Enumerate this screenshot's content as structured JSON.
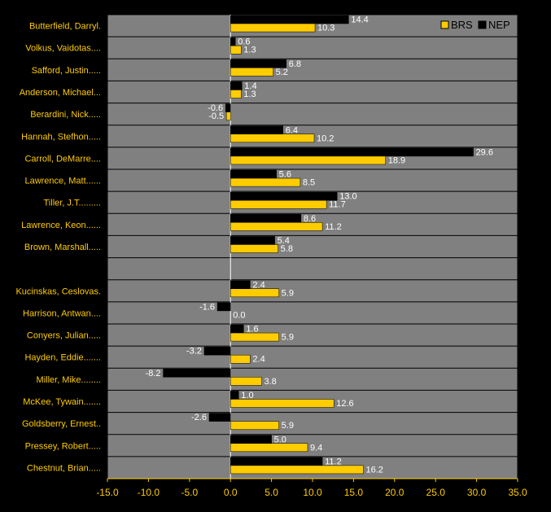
{
  "chart_data": {
    "type": "bar",
    "orientation": "horizontal",
    "categories": [
      "Butterfield, Darryl.",
      "Volkus, Vaidotas....",
      "Safford, Justin.....",
      "Anderson, Michael...",
      "Berardini, Nick.....",
      "Hannah, Stefhon.....",
      "Carroll, DeMarre....",
      "Lawrence, Matt......",
      "Tiller, J.T.........",
      "Lawrence, Keon......",
      "Brown, Marshall.....",
      "",
      "Kucinskas, Ceslovas.",
      "Harrison, Antwan....",
      "Conyers, Julian.....",
      "Hayden, Eddie.......",
      "Miller, Mike........",
      "McKee, Tywain.......",
      "Goldsberry, Ernest..",
      "Pressey, Robert.....",
      "Chestnut, Brian....."
    ],
    "series": [
      {
        "name": "NEP",
        "color": "#000000",
        "values": [
          14.4,
          0.6,
          6.8,
          1.4,
          -0.6,
          6.4,
          29.6,
          5.6,
          13.0,
          8.6,
          5.4,
          null,
          2.4,
          -1.6,
          1.6,
          -3.2,
          -8.2,
          1.0,
          -2.6,
          5.0,
          11.2
        ],
        "labels": [
          "14.4",
          "0.6",
          "6.8",
          "1.4",
          "-0.6",
          "6.4",
          "29.6",
          "5.6",
          "13.0",
          "8.6",
          "5.4",
          "",
          "2.4",
          "-1.6",
          "1.6",
          "-3.2",
          "-8.2",
          "1.0",
          "-2.6",
          "5.0",
          "11.2"
        ]
      },
      {
        "name": "BRS",
        "color": "#FFCC00",
        "values": [
          10.3,
          1.3,
          5.2,
          1.3,
          -0.5,
          10.2,
          18.9,
          8.5,
          11.7,
          11.2,
          5.8,
          null,
          5.9,
          0.0,
          5.9,
          2.4,
          3.8,
          12.6,
          5.9,
          9.4,
          16.2
        ],
        "labels": [
          "10.3",
          "1.3",
          "5.2",
          "1.3",
          "-0.5",
          "10.2",
          "18.9",
          "8.5",
          "11.7",
          "11.2",
          "5.8",
          "",
          "5.9",
          "0.0",
          "5.9",
          "2.4",
          "3.8",
          "12.6",
          "5.9",
          "9.4",
          "16.2"
        ]
      }
    ],
    "legend_order": [
      "BRS",
      "NEP"
    ],
    "xlim": [
      -15,
      35
    ],
    "xticks": [
      "-15.0",
      "-10.0",
      "-5.0",
      "0.0",
      "5.0",
      "10.0",
      "15.0",
      "20.0",
      "25.0",
      "30.0",
      "35.0"
    ],
    "legend_position": "top-right",
    "grid": true,
    "plot_background": "#808080",
    "label_color": "#FFCC00",
    "title": "",
    "xlabel": "",
    "ylabel": ""
  }
}
